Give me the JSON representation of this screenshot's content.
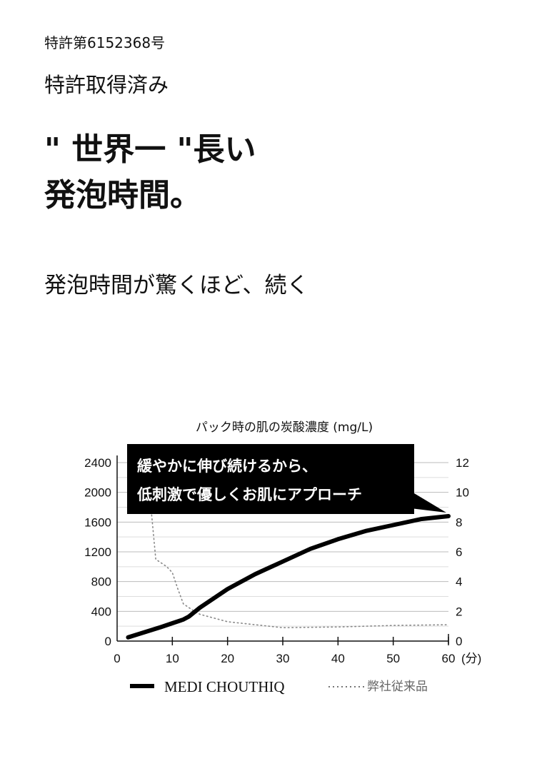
{
  "header": {
    "patent_number": "特許第6152368号",
    "patent_acquired": "特許取得済み",
    "headline_line1": "\" 世界一 \"長い",
    "headline_line2": "発泡時間。",
    "subheadline": "発泡時間が驚くほど、続く"
  },
  "chart_data": {
    "type": "line",
    "title": "パック時の肌の炭酸濃度 (mg/L)",
    "xlabel": "(分)",
    "x_ticks": [
      "0",
      "10",
      "20",
      "30",
      "40",
      "50",
      "60"
    ],
    "xlim": [
      0,
      60
    ],
    "y_left_ticks": [
      "0",
      "400",
      "800",
      "1200",
      "1600",
      "2000",
      "2400"
    ],
    "ylim_left": [
      0,
      2400
    ],
    "y_right_ticks": [
      "0",
      "2",
      "4",
      "6",
      "8",
      "10",
      "12"
    ],
    "ylim_right": [
      0,
      12
    ],
    "grid": true,
    "legend_placement": "bottom",
    "callout": [
      "緩やかに伸び続けるから、",
      "低刺激で優しくお肌にアプローチ"
    ],
    "series": [
      {
        "name": "MEDI CHOUTHIQ",
        "axis": "left",
        "style": "solid",
        "color": "#000000",
        "x": [
          2,
          5,
          8,
          10,
          12,
          13,
          15,
          20,
          25,
          30,
          35,
          40,
          45,
          50,
          55,
          60
        ],
        "y": [
          50,
          120,
          190,
          240,
          290,
          330,
          450,
          700,
          900,
          1070,
          1240,
          1370,
          1480,
          1560,
          1640,
          1680
        ]
      },
      {
        "name": "弊社従来品",
        "axis": "right",
        "style": "dotted",
        "color": "#888888",
        "x": [
          5.5,
          6,
          7,
          9,
          10,
          11,
          12,
          14,
          15,
          20,
          25,
          30,
          40,
          50,
          60
        ],
        "y": [
          13,
          9.5,
          5.5,
          5.0,
          4.6,
          3.5,
          2.5,
          2.0,
          1.8,
          1.3,
          1.1,
          0.9,
          0.95,
          1.05,
          1.1
        ]
      }
    ]
  }
}
